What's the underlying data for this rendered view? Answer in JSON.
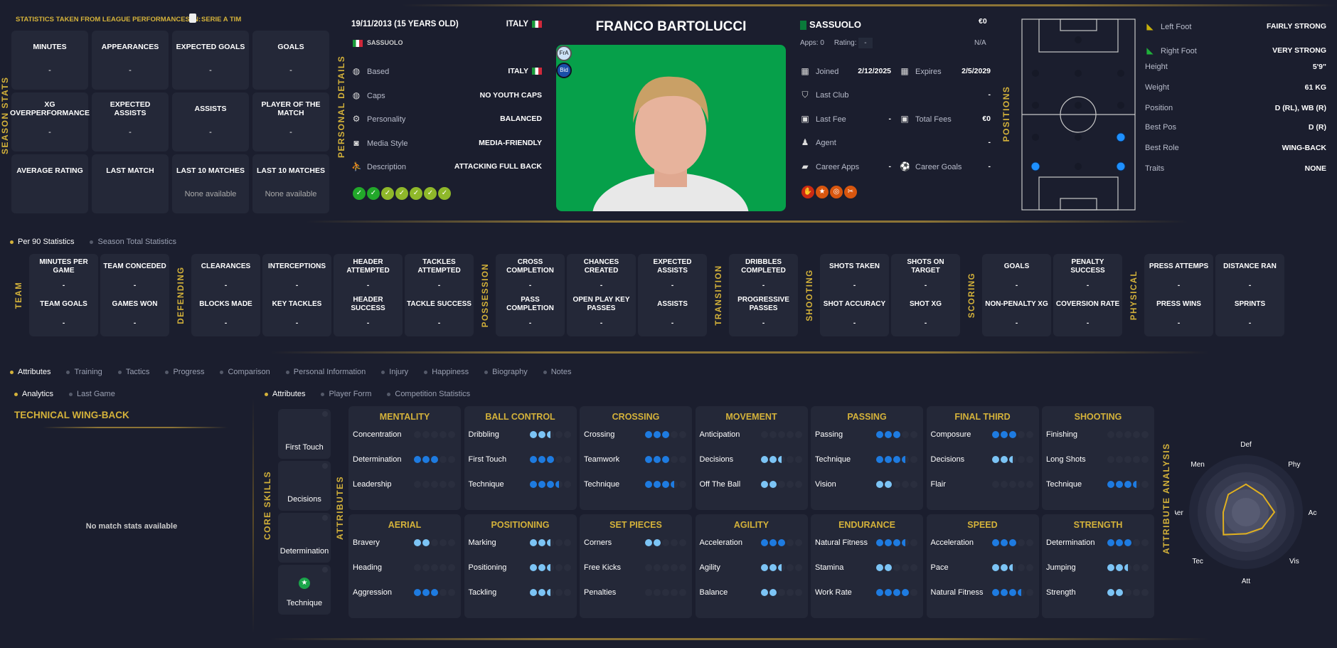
{
  "season": {
    "section_label": "SEASON STATS",
    "source_label": "STATISTICS TAKEN FROM LEAGUE PERFORMANCES IN:",
    "league": "SERIE A TIM",
    "cards": [
      {
        "title": "MINUTES",
        "value": "-"
      },
      {
        "title": "APPEARANCES",
        "value": "-"
      },
      {
        "title": "EXPECTED GOALS",
        "value": "-"
      },
      {
        "title": "GOALS",
        "value": "-"
      },
      {
        "title": "XG OVERPERFORMANCE",
        "value": "-"
      },
      {
        "title": "EXPECTED ASSISTS",
        "value": "-"
      },
      {
        "title": "ASSISTS",
        "value": "-"
      },
      {
        "title": "PLAYER OF THE MATCH",
        "value": "-"
      },
      {
        "title": "AVERAGE RATING",
        "value": ""
      },
      {
        "title": "LAST MATCH",
        "value": ""
      },
      {
        "title": "LAST 10 MATCHES",
        "value": "None available"
      },
      {
        "title": "LAST 10 MATCHES",
        "value": "None available"
      }
    ]
  },
  "personal": {
    "section_label": "PERSONAL DETAILS",
    "dob": "19/11/2013 (15 YEARS OLD)",
    "nationality": "ITALY",
    "club": "SASSUOLO",
    "rows": [
      {
        "icon": "globe-icon",
        "label": "Based",
        "value": "ITALY",
        "flag": true
      },
      {
        "icon": "globe-icon",
        "label": "Caps",
        "value": "NO YOUTH CAPS"
      },
      {
        "icon": "gears-icon",
        "label": "Personality",
        "value": "BALANCED"
      },
      {
        "icon": "camera-icon",
        "label": "Media Style",
        "value": "MEDIA-FRIENDLY"
      },
      {
        "icon": "player-kick-icon",
        "label": "Description",
        "value": "ATTACKING FULL BACK"
      }
    ],
    "trait_icons": [
      "heartbeat-icon",
      "boots-icon",
      "trend-up-icon",
      "brain-icon",
      "bandage-icon",
      "card-icon",
      "card-icon"
    ]
  },
  "player": {
    "name": "FRANCO BARTOLUCCI",
    "badges": [
      "FrA",
      "Bid"
    ]
  },
  "contract": {
    "club": "SASSUOLO",
    "value": "€0",
    "apps_label": "Apps:",
    "apps": "0",
    "rating_label": "Rating:",
    "rating": "-",
    "rating_na": "N/A",
    "joined_label": "Joined",
    "joined": "2/12/2025",
    "expires_label": "Expires",
    "expires": "2/5/2029",
    "last_club_label": "Last Club",
    "last_club": "-",
    "last_fee_label": "Last Fee",
    "last_fee": "-",
    "total_fees_label": "Total Fees",
    "total_fees": "€0",
    "agent_label": "Agent",
    "agent": "-",
    "career_apps_label": "Career Apps",
    "career_apps": "-",
    "career_goals_label": "Career Goals",
    "career_goals": "-",
    "badge_icons": [
      "gloves-icon",
      "star-icon",
      "target-icon",
      "scissors-icon"
    ]
  },
  "positions": {
    "section_label": "POSITIONS",
    "highlighted": [
      "D (R)",
      "WB (R)",
      "D (L)"
    ]
  },
  "physical": [
    {
      "label": "Left Foot",
      "value": "FAIRLY STRONG",
      "icon": "boot-yellow-icon"
    },
    {
      "label": "Right Foot",
      "value": "VERY STRONG",
      "icon": "boot-green-icon"
    },
    {
      "label": "Height",
      "value": "5'9\""
    },
    {
      "label": "Weight",
      "value": "61 KG"
    },
    {
      "label": "Position",
      "value": "D (RL), WB (R)"
    },
    {
      "label": "Best Pos",
      "value": "D (R)"
    },
    {
      "label": "Best Role",
      "value": "WING-BACK"
    },
    {
      "label": "Traits",
      "value": "NONE"
    }
  ],
  "stat_tabs": [
    {
      "label": "Per 90 Statistics",
      "active": true
    },
    {
      "label": "Season Total Statistics",
      "active": false
    }
  ],
  "per90": [
    {
      "group": "TEAM",
      "cards": [
        [
          "MINUTES PER GAME",
          "-",
          "TEAM GOALS",
          "-"
        ],
        [
          "TEAM CONCEDED",
          "-",
          "GAMES WON",
          "-"
        ]
      ]
    },
    {
      "group": "DEFENDING",
      "cards": [
        [
          "CLEARANCES",
          "-",
          "BLOCKS MADE",
          "-"
        ],
        [
          "INTERCEPTIONS",
          "-",
          "KEY TACKLES",
          "-"
        ],
        [
          "HEADER ATTEMPTED",
          "-",
          "HEADER SUCCESS",
          "-"
        ],
        [
          "TACKLES ATTEMPTED",
          "-",
          "TACKLE SUCCESS",
          "-"
        ]
      ]
    },
    {
      "group": "POSSESSION",
      "cards": [
        [
          "CROSS COMPLETION",
          "-",
          "PASS COMPLETION",
          "-"
        ],
        [
          "CHANCES CREATED",
          "-",
          "OPEN PLAY KEY PASSES",
          "-"
        ],
        [
          "EXPECTED ASSISTS",
          "-",
          "ASSISTS",
          "-"
        ]
      ]
    },
    {
      "group": "TRANSITION",
      "cards": [
        [
          "DRIBBLES COMPLETED",
          "-",
          "PROGRESSIVE PASSES",
          "-"
        ]
      ]
    },
    {
      "group": "SHOOTING",
      "cards": [
        [
          "SHOTS TAKEN",
          "-",
          "SHOT ACCURACY",
          "-"
        ],
        [
          "SHOTS ON TARGET",
          "-",
          "SHOT XG",
          "-"
        ]
      ]
    },
    {
      "group": "SCORING",
      "cards": [
        [
          "GOALS",
          "-",
          "NON-PENALTY XG",
          "-"
        ],
        [
          "PENALTY SUCCESS",
          "-",
          "COVERSION RATE",
          "-"
        ]
      ]
    },
    {
      "group": "PHYSICAL",
      "cards": [
        [
          "PRESS ATTEMPS",
          "-",
          "PRESS WINS",
          "-"
        ],
        [
          "DISTANCE RAN",
          "-",
          "SPRINTS",
          "-"
        ]
      ]
    }
  ],
  "main_tabs": [
    {
      "label": "Attributes",
      "active": true
    },
    {
      "label": "Training"
    },
    {
      "label": "Tactics"
    },
    {
      "label": "Progress"
    },
    {
      "label": "Comparison"
    },
    {
      "label": "Personal Information"
    },
    {
      "label": "Injury"
    },
    {
      "label": "Happiness"
    },
    {
      "label": "Biography"
    },
    {
      "label": "Notes"
    }
  ],
  "left_tabs": [
    {
      "label": "Analytics",
      "active": true
    },
    {
      "label": "Last Game"
    }
  ],
  "left_panel": {
    "role": "TECHNICAL WING-BACK",
    "empty": "No match stats available"
  },
  "attr_tabs": [
    {
      "label": "Attributes",
      "active": true
    },
    {
      "label": "Player Form"
    },
    {
      "label": "Competition Statistics"
    }
  ],
  "core_skills": {
    "label": "CORE SKILLS",
    "items": [
      "First Touch",
      "Decisions",
      "Determination",
      "Technique"
    ],
    "starred": "Technique"
  },
  "attributes_label": "ATTRIBUTES",
  "colors": {
    "accent": "#d4b23a",
    "dot_high": "#1e7be0",
    "dot_low": "#7cc4f5",
    "panel": "#242838",
    "bg": "#1b1e2e"
  },
  "attribute_groups": [
    {
      "title": "MENTALITY",
      "items": [
        [
          "Concentration",
          0,
          "high"
        ],
        [
          "Determination",
          3,
          "high"
        ],
        [
          "Leadership",
          0,
          "high"
        ]
      ]
    },
    {
      "title": "BALL CONTROL",
      "items": [
        [
          "Dribbling",
          2.5,
          "low"
        ],
        [
          "First Touch",
          3,
          "high"
        ],
        [
          "Technique",
          3.5,
          "high"
        ]
      ]
    },
    {
      "title": "CROSSING",
      "items": [
        [
          "Crossing",
          3,
          "high"
        ],
        [
          "Teamwork",
          3,
          "high"
        ],
        [
          "Technique",
          3.5,
          "high"
        ]
      ]
    },
    {
      "title": "MOVEMENT",
      "items": [
        [
          "Anticipation",
          0,
          "high"
        ],
        [
          "Decisions",
          2.5,
          "low"
        ],
        [
          "Off The Ball",
          2,
          "low"
        ]
      ]
    },
    {
      "title": "PASSING",
      "items": [
        [
          "Passing",
          3,
          "high"
        ],
        [
          "Technique",
          3.5,
          "high"
        ],
        [
          "Vision",
          2,
          "low"
        ]
      ]
    },
    {
      "title": "FINAL THIRD",
      "items": [
        [
          "Composure",
          3,
          "high"
        ],
        [
          "Decisions",
          2.5,
          "low"
        ],
        [
          "Flair",
          0,
          "high"
        ]
      ]
    },
    {
      "title": "SHOOTING",
      "items": [
        [
          "Finishing",
          0,
          "high"
        ],
        [
          "Long Shots",
          0,
          "high"
        ],
        [
          "Technique",
          3.5,
          "high"
        ]
      ]
    },
    {
      "title": "AERIAL",
      "items": [
        [
          "Bravery",
          2,
          "low"
        ],
        [
          "Heading",
          0,
          "high"
        ],
        [
          "Aggression",
          3,
          "high"
        ]
      ]
    },
    {
      "title": "POSITIONING",
      "items": [
        [
          "Marking",
          2.5,
          "low"
        ],
        [
          "Positioning",
          2.5,
          "low"
        ],
        [
          "Tackling",
          2.5,
          "low"
        ]
      ]
    },
    {
      "title": "SET PIECES",
      "items": [
        [
          "Corners",
          2,
          "low"
        ],
        [
          "Free Kicks",
          0,
          "high"
        ],
        [
          "Penalties",
          0,
          "high"
        ]
      ]
    },
    {
      "title": "AGILITY",
      "items": [
        [
          "Acceleration",
          3,
          "high"
        ],
        [
          "Agility",
          2.5,
          "low"
        ],
        [
          "Balance",
          2,
          "low"
        ]
      ]
    },
    {
      "title": "ENDURANCE",
      "items": [
        [
          "Natural Fitness",
          3.5,
          "high"
        ],
        [
          "Stamina",
          2,
          "low"
        ],
        [
          "Work Rate",
          4,
          "high"
        ]
      ]
    },
    {
      "title": "SPEED",
      "items": [
        [
          "Acceleration",
          3,
          "high"
        ],
        [
          "Pace",
          2.5,
          "low"
        ],
        [
          "Natural Fitness",
          3.5,
          "high"
        ]
      ]
    },
    {
      "title": "STRENGTH",
      "items": [
        [
          "Determination",
          3,
          "high"
        ],
        [
          "Jumping",
          2.5,
          "low"
        ],
        [
          "Strength",
          2,
          "low"
        ]
      ]
    }
  ],
  "radar": {
    "label": "ATTRIBUTE ANALYSIS",
    "axes": [
      "Def",
      "Phy",
      "Acc",
      "Vis",
      "Att",
      "Tec",
      "Aer",
      "Men"
    ],
    "values": [
      0.49,
      0.42,
      0.5,
      0.4,
      0.38,
      0.56,
      0.4,
      0.44
    ]
  }
}
